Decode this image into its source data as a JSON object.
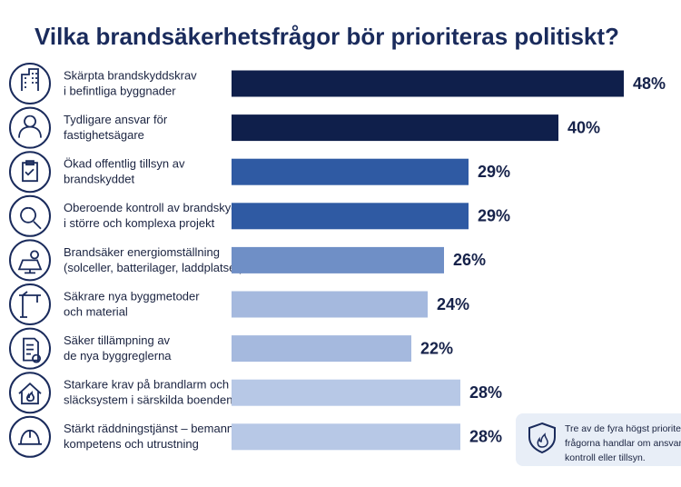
{
  "chart_data": {
    "type": "hbar",
    "title": "Vilka brandsäkerhetsfrågor bör prioriteras politiskt?",
    "categories": [
      [
        "Skärpta brandskyddskrav",
        "i befintliga byggnader"
      ],
      [
        "Tydligare ansvar för",
        "fastighetsägare"
      ],
      [
        "Ökad offentlig tillsyn av",
        "brandskyddet"
      ],
      [
        "Oberoende kontroll av brandskyddet",
        "i större och komplexa projekt"
      ],
      [
        "Brandsäker energiomställning",
        "(solceller, batterilager, laddplatser)"
      ],
      [
        "Säkrare nya byggmetoder",
        "och material"
      ],
      [
        "Säker tillämpning av",
        "de nya byggreglerna"
      ],
      [
        "Starkare krav på brandlarm och",
        "släcksystem i särskilda boenden"
      ],
      [
        "Stärkt räddningstjänst – bemanning,",
        "kompetens och utrustning"
      ]
    ],
    "values": [
      48,
      40,
      29,
      29,
      26,
      24,
      22,
      28,
      28
    ],
    "value_labels": [
      "48%",
      "40%",
      "29%",
      "29%",
      "26%",
      "24%",
      "22%",
      "28%",
      "28%"
    ],
    "colors": [
      "#0f1f4b",
      "#0f1f4b",
      "#2f5aa3",
      "#2f5aa3",
      "#6f8fc6",
      "#a5b9de",
      "#a5b9de",
      "#b7c8e6",
      "#b7c8e6"
    ],
    "xlim": [
      0,
      50
    ],
    "annotation": [
      "Tre av de fyra högst prioriterade",
      "frågorna handlar om ansvar,",
      "kontroll eller tillsyn."
    ]
  }
}
